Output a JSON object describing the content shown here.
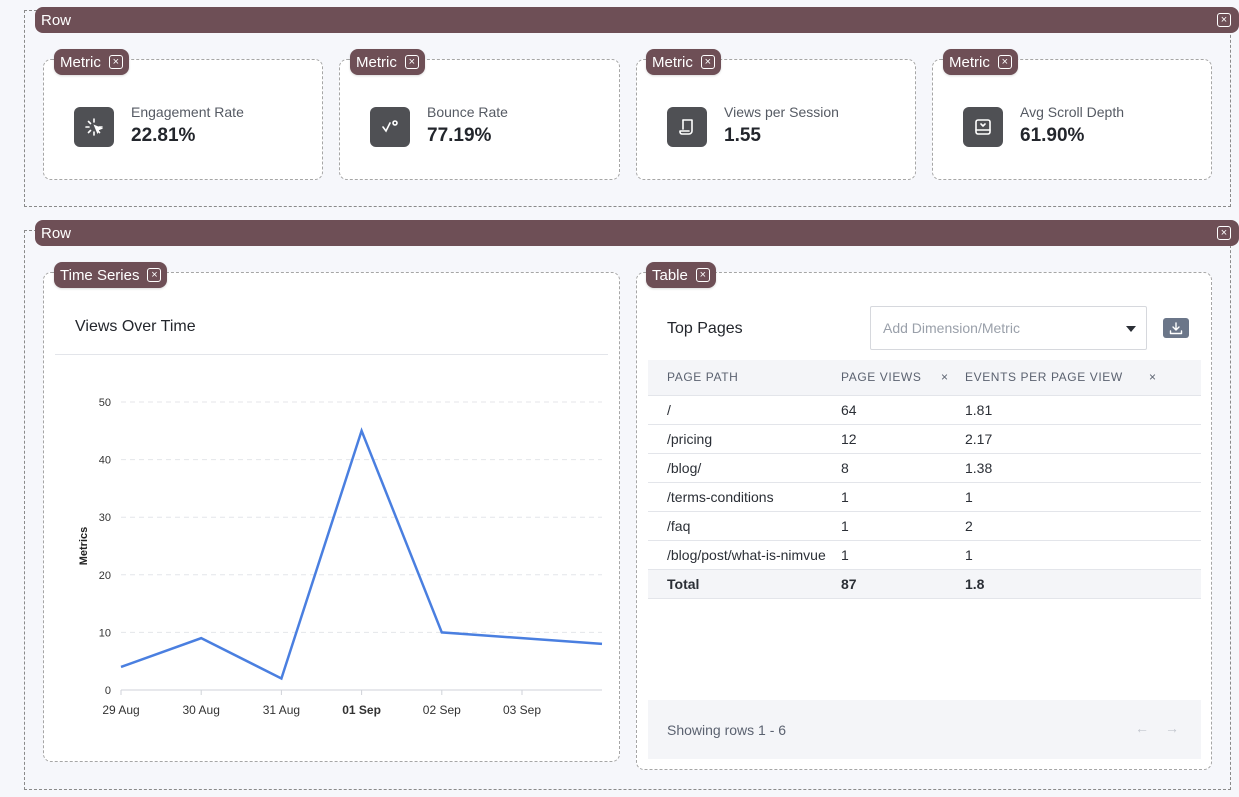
{
  "rows": [
    {
      "label": "Row",
      "close": "×"
    },
    {
      "label": "Row",
      "close": "×"
    }
  ],
  "metrics": [
    {
      "tag": "Metric",
      "label": "Engagement Rate",
      "value": "22.81%",
      "icon": "sparkle-cursor-icon"
    },
    {
      "tag": "Metric",
      "label": "Bounce Rate",
      "value": "77.19%",
      "icon": "bounce-arrow-icon"
    },
    {
      "tag": "Metric",
      "label": "Views per Session",
      "value": "1.55",
      "icon": "scroll-page-icon"
    },
    {
      "tag": "Metric",
      "label": "Avg Scroll Depth",
      "value": "61.90%",
      "icon": "scroll-depth-icon"
    }
  ],
  "timeseries": {
    "tag": "Time Series",
    "title": "Views Over Time"
  },
  "chart_data": {
    "type": "line",
    "title": "Views Over Time",
    "xlabel": "",
    "ylabel": "Metrics",
    "x": [
      "29 Aug",
      "30 Aug",
      "31 Aug",
      "01 Sep",
      "02 Sep",
      "03 Sep",
      "04 Sep"
    ],
    "xticks": [
      "29 Aug",
      "30 Aug",
      "31 Aug",
      "01 Sep",
      "02 Sep",
      "03 Sep"
    ],
    "bold_tick": "01 Sep",
    "yticks": [
      0,
      10,
      20,
      30,
      40,
      50
    ],
    "ylim": [
      0,
      50
    ],
    "grid": true,
    "color": "#4a7fe0",
    "series": [
      {
        "values": [
          4,
          9,
          2,
          45,
          10,
          9,
          8
        ]
      }
    ]
  },
  "table": {
    "tag": "Table",
    "title": "Top Pages",
    "dropdown_placeholder": "Add Dimension/Metric",
    "columns": [
      "PAGE PATH",
      "PAGE VIEWS",
      "EVENTS PER PAGE VIEW"
    ],
    "remove_glyph": "×",
    "rows": [
      [
        "/",
        "64",
        "1.81"
      ],
      [
        "/pricing",
        "12",
        "2.17"
      ],
      [
        "/blog/",
        "8",
        "1.38"
      ],
      [
        "/terms-conditions",
        "1",
        "1"
      ],
      [
        "/faq",
        "1",
        "2"
      ],
      [
        "/blog/post/what-is-nimvue",
        "1",
        "1"
      ]
    ],
    "total": [
      "Total",
      "87",
      "1.8"
    ],
    "footer": "Showing rows 1 - 6",
    "prev_arrow": "←",
    "next_arrow": "→"
  }
}
